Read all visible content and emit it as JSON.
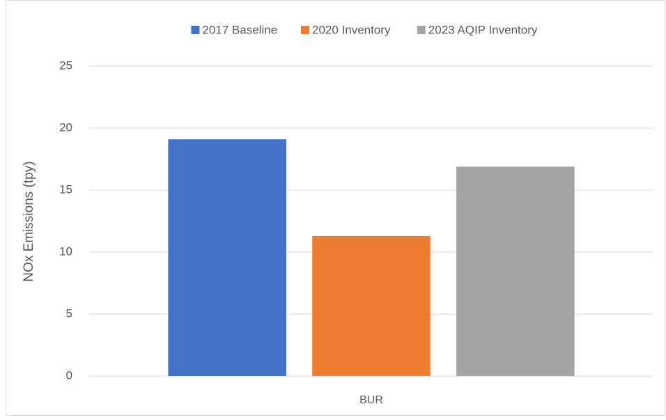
{
  "chart_data": {
    "type": "bar",
    "y_label": "NOx Emissions (tpy)",
    "categories": [
      "BUR"
    ],
    "series": [
      {
        "name": "2017 Baseline",
        "color": "#4472c4",
        "values": [
          19.1
        ]
      },
      {
        "name": "2020 Inventory",
        "color": "#ed7d31",
        "values": [
          11.3
        ]
      },
      {
        "name": "2023 AQIP Inventory",
        "color": "#a5a5a5",
        "values": [
          16.9
        ]
      }
    ],
    "ylim": [
      0,
      25
    ],
    "yticks": [
      0,
      5,
      10,
      15,
      20,
      25
    ],
    "grid": true,
    "legend": "top"
  }
}
